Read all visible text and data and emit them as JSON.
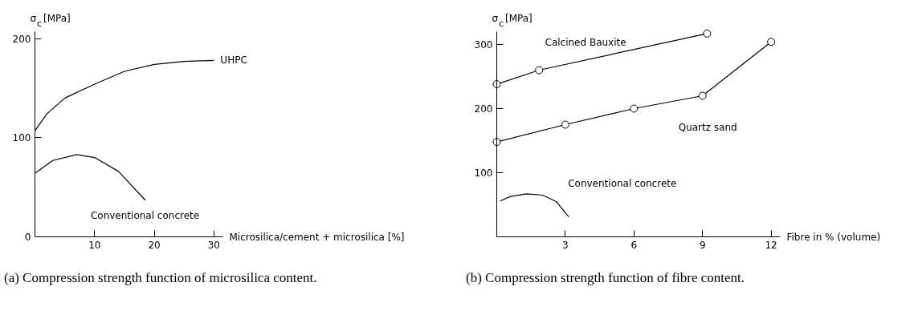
{
  "chart_data": [
    {
      "type": "line",
      "xlabel": "Microsilica/cement + microsilica [%]",
      "ylabel": "σ$_{c}$ [MPa]",
      "xlim": [
        0,
        31.5
      ],
      "ylim": [
        0,
        207
      ],
      "xticks": [
        10,
        20,
        30
      ],
      "yticks": [
        0,
        100,
        200
      ],
      "grid": false,
      "marker": "none",
      "line_style": "solid",
      "series": [
        {
          "name": "UHPC",
          "color": "#000000",
          "x": [
            0,
            2,
            5,
            10,
            15,
            20,
            25,
            30
          ],
          "values": [
            107,
            124,
            140,
            154,
            167,
            174,
            177,
            178
          ]
        },
        {
          "name": "Conventional concrete",
          "color": "#000000",
          "x": [
            0,
            3,
            7,
            10,
            14,
            18.5
          ],
          "values": [
            64,
            77,
            83,
            80,
            66,
            37
          ]
        }
      ],
      "annotations": [
        "(a) Compression strength function of microsilica content."
      ]
    },
    {
      "type": "line",
      "xlabel": "Fibre in % (volume)",
      "ylabel": "σ$_{c}$ [MPa]",
      "xlim": [
        0,
        12.4
      ],
      "ylim": [
        0,
        320
      ],
      "xticks": [
        3,
        6,
        9,
        12
      ],
      "yticks": [
        100,
        200,
        300
      ],
      "grid": false,
      "line_style": "solid",
      "series": [
        {
          "name": "Calcined Bauxite",
          "color": "#000000",
          "marker": "circle",
          "x": [
            0,
            1.85,
            9.2
          ],
          "values": [
            238,
            260,
            317
          ]
        },
        {
          "name": "Quartz sand",
          "color": "#000000",
          "marker": "circle",
          "x": [
            0,
            3,
            6,
            9,
            12
          ],
          "values": [
            148,
            175,
            200,
            220,
            304
          ]
        },
        {
          "name": "Conventional concrete",
          "color": "#000000",
          "marker": "none",
          "x": [
            0.15,
            0.6,
            1.3,
            2.0,
            2.6,
            3.15
          ],
          "values": [
            56,
            63,
            67,
            65,
            55,
            31
          ]
        }
      ],
      "annotations": [
        "(b) Compression strength function of fibre content."
      ]
    }
  ]
}
